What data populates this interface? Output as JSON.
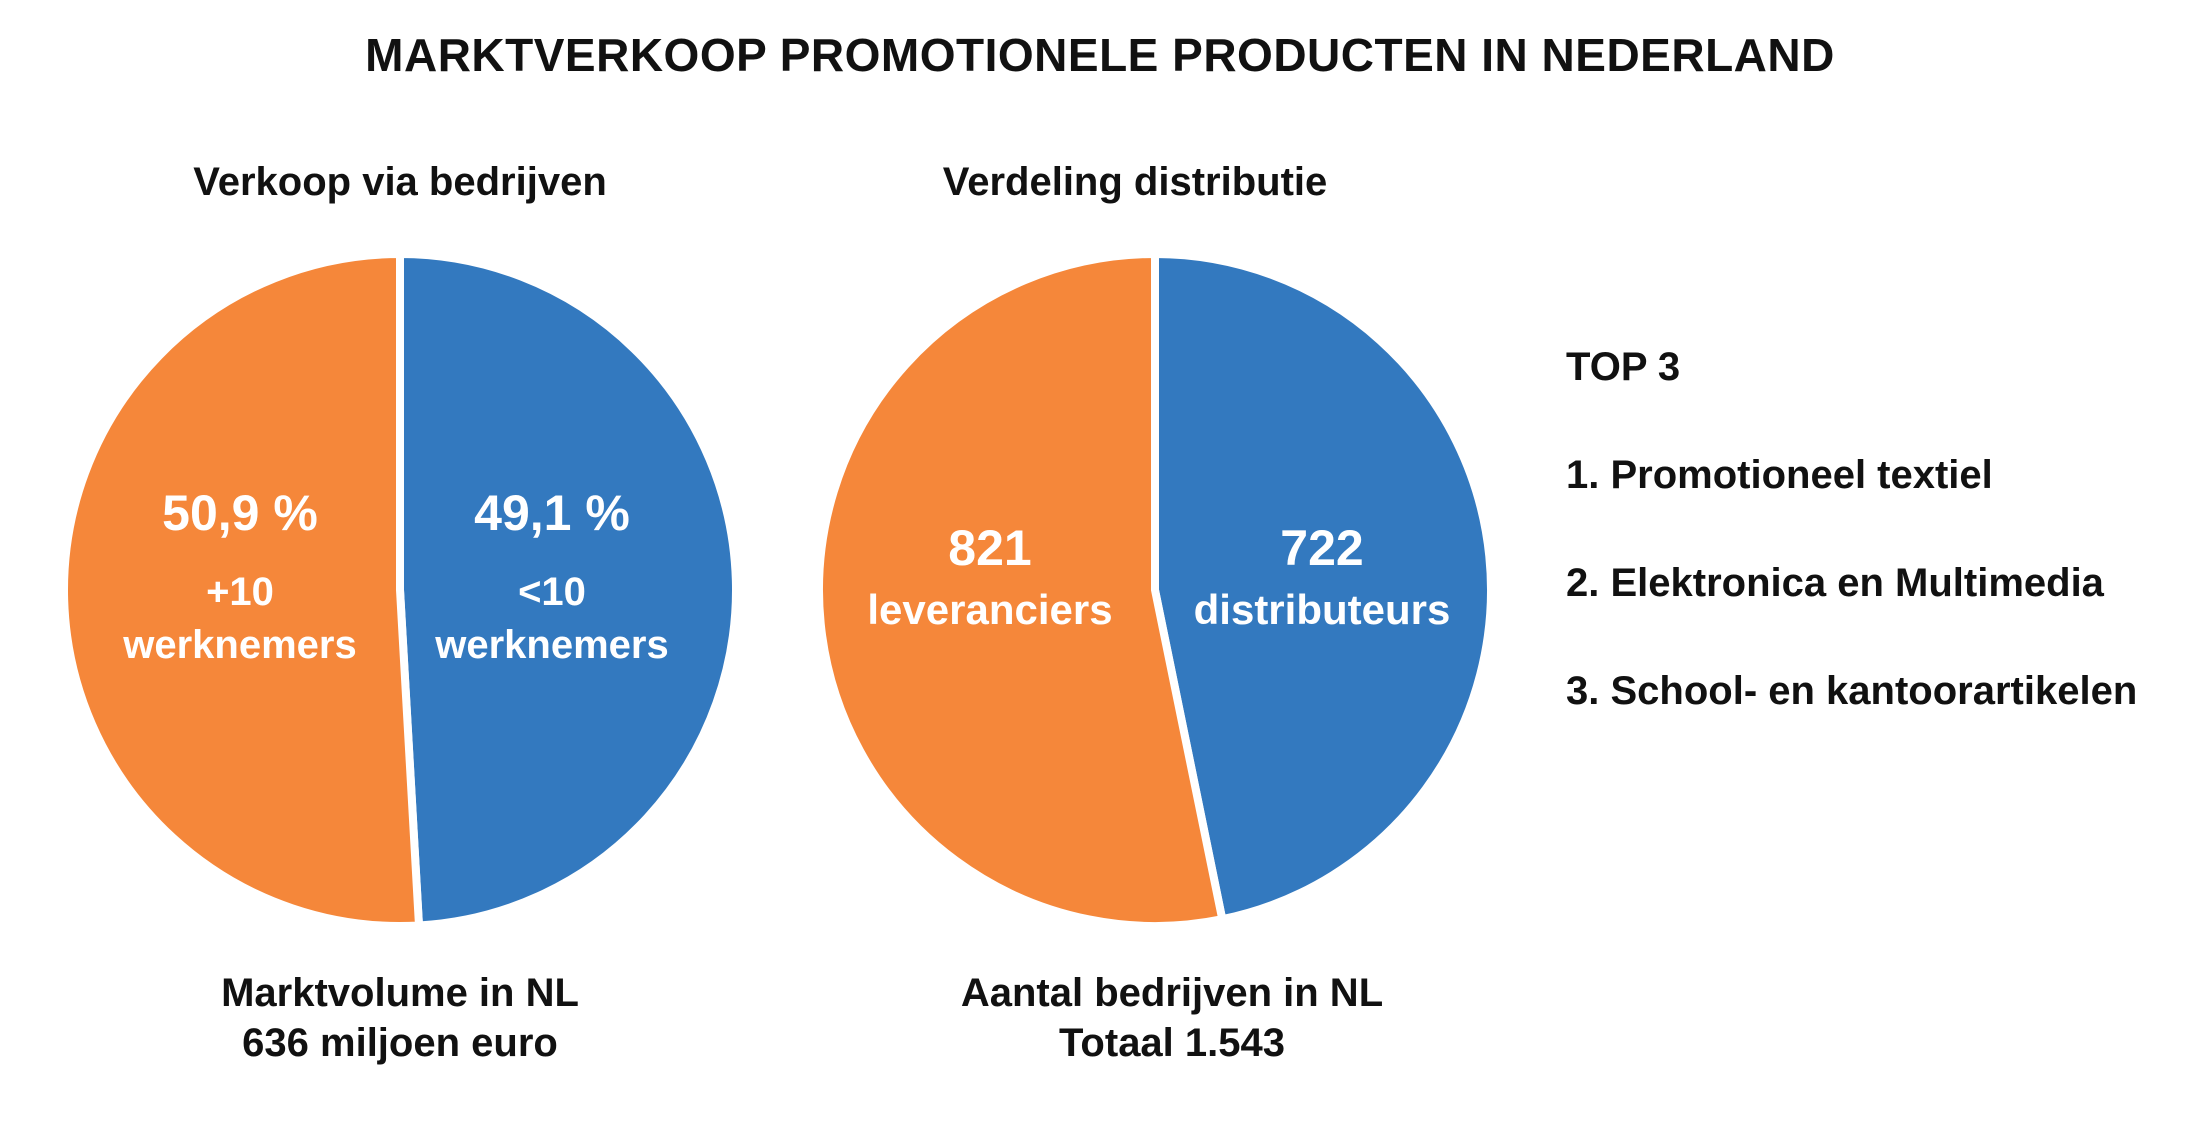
{
  "title": "MARKTVERKOOP PROMOTIONELE PRODUCTEN IN NEDERLAND",
  "colors": {
    "orange": "#F5873A",
    "blue": "#3379BF"
  },
  "chart_data": [
    {
      "type": "pie",
      "title": "Verkoop via bedrijven",
      "slices": [
        {
          "value": 49.1,
          "label": "49,1 %",
          "sublabel1": "<10",
          "sublabel2": "werknemers",
          "color": "#3379BF"
        },
        {
          "value": 50.9,
          "label": "50,9 %",
          "sublabel1": "+10",
          "sublabel2": "werknemers",
          "color": "#F5873A"
        }
      ],
      "caption_line1": "Marktvolume in NL",
      "caption_line2": "636 miljoen euro"
    },
    {
      "type": "pie",
      "title": "Verdeling distributie",
      "slices": [
        {
          "value": 722,
          "label": "722",
          "sublabel1": "distributeurs",
          "color": "#3379BF"
        },
        {
          "value": 821,
          "label": "821",
          "sublabel1": "leveranciers",
          "color": "#F5873A"
        }
      ],
      "caption_line1": "Aantal bedrijven in NL",
      "caption_line2": "Totaal 1.543"
    }
  ],
  "top3": {
    "heading": "TOP 3",
    "items": [
      "1. Promotioneel textiel",
      "2. Elektronica en Multimedia",
      "3. School- en kantoorartikelen"
    ]
  }
}
